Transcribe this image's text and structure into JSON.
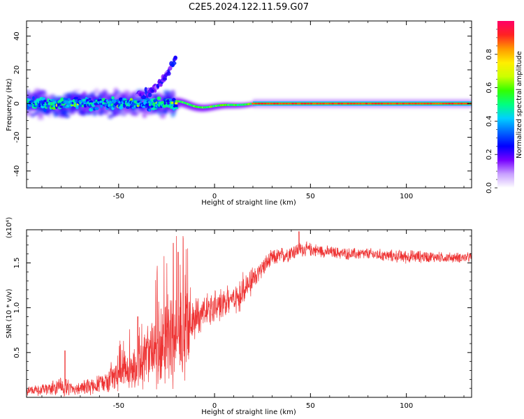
{
  "figure": {
    "title": "C2E5.2024.122.11.59.G07"
  },
  "chart_data": [
    {
      "type": "heatmap",
      "xlabel": "Height of straight line (km)",
      "ylabel": "Frequency (Hz)",
      "xlim": [
        -98,
        134
      ],
      "ylim": [
        -50,
        49
      ],
      "x_ticks": [
        -50,
        0,
        50,
        100
      ],
      "y_ticks": [
        -40,
        -20,
        0,
        20,
        40
      ],
      "grid": false,
      "colorbar": {
        "label": "Normalized spectral amplitude",
        "range": [
          0,
          1
        ],
        "ticks": [
          "0.0",
          "0.2",
          "0.4",
          "0.6",
          "0.8"
        ],
        "colors": [
          "#ffffff",
          "#c8a0ff",
          "#7700ff",
          "#0000ff",
          "#0066ff",
          "#00d0ff",
          "#00ff80",
          "#33ff00",
          "#ccff00",
          "#ffee00",
          "#ff9900",
          "#ff2222",
          "#ff0066"
        ]
      },
      "features": [
        {
          "name": "noisy spread before transition",
          "x_range": [
            -98,
            -20
          ],
          "freq_center": 0,
          "freq_halfwidth": 7
        },
        {
          "name": "rising tail",
          "x_range": [
            -40,
            -20
          ],
          "freq_range": [
            5,
            28
          ]
        },
        {
          "name": "steady tone",
          "x_range": [
            20,
            134
          ],
          "freq_center": 0,
          "amplitude": 0.9
        }
      ]
    },
    {
      "type": "line",
      "xlabel": "Height of straight line (km)",
      "ylabel": "SNR (10 * v/v)",
      "y_multiplier": "(x10⁴)",
      "xlim": [
        -98,
        134
      ],
      "ylim": [
        0.0,
        1.87
      ],
      "x_ticks": [
        -50,
        0,
        50,
        100
      ],
      "y_ticks": [
        "0.5",
        "1.0",
        "1.5"
      ],
      "grid": false,
      "color": "#ee3333",
      "envelope_x": [
        -98,
        -90,
        -80,
        -75,
        -70,
        -65,
        -60,
        -55,
        -50,
        -45,
        -40,
        -35,
        -30,
        -25,
        -20,
        -17,
        -14,
        -13,
        -10,
        -5,
        0,
        5,
        10,
        15,
        20,
        25,
        30,
        35,
        40,
        45,
        50,
        60,
        70,
        80,
        90,
        100,
        110,
        120,
        134
      ],
      "envelope_mean": [
        0.08,
        0.08,
        0.12,
        0.1,
        0.1,
        0.12,
        0.15,
        0.2,
        0.25,
        0.28,
        0.35,
        0.45,
        0.55,
        0.6,
        0.7,
        0.7,
        0.6,
        0.75,
        0.9,
        0.95,
        1.0,
        1.05,
        1.1,
        1.2,
        1.3,
        1.45,
        1.55,
        1.58,
        1.62,
        1.65,
        1.65,
        1.62,
        1.6,
        1.6,
        1.58,
        1.57,
        1.57,
        1.56,
        1.56
      ],
      "envelope_noise": [
        0.06,
        0.06,
        0.12,
        0.08,
        0.07,
        0.1,
        0.12,
        0.15,
        0.18,
        0.22,
        0.25,
        0.35,
        0.45,
        0.55,
        0.6,
        0.6,
        0.55,
        0.3,
        0.25,
        0.2,
        0.2,
        0.2,
        0.2,
        0.2,
        0.15,
        0.12,
        0.1,
        0.1,
        0.1,
        0.09,
        0.08,
        0.07,
        0.07,
        0.07,
        0.07,
        0.08,
        0.07,
        0.06,
        0.06
      ],
      "peaks": [
        {
          "x": -78,
          "y": 0.52
        },
        {
          "x": -40,
          "y": 0.9
        },
        {
          "x": -21.5,
          "y": 1.72
        },
        {
          "x": -19,
          "y": 1.62
        },
        {
          "x": 44,
          "y": 1.85
        }
      ]
    }
  ]
}
